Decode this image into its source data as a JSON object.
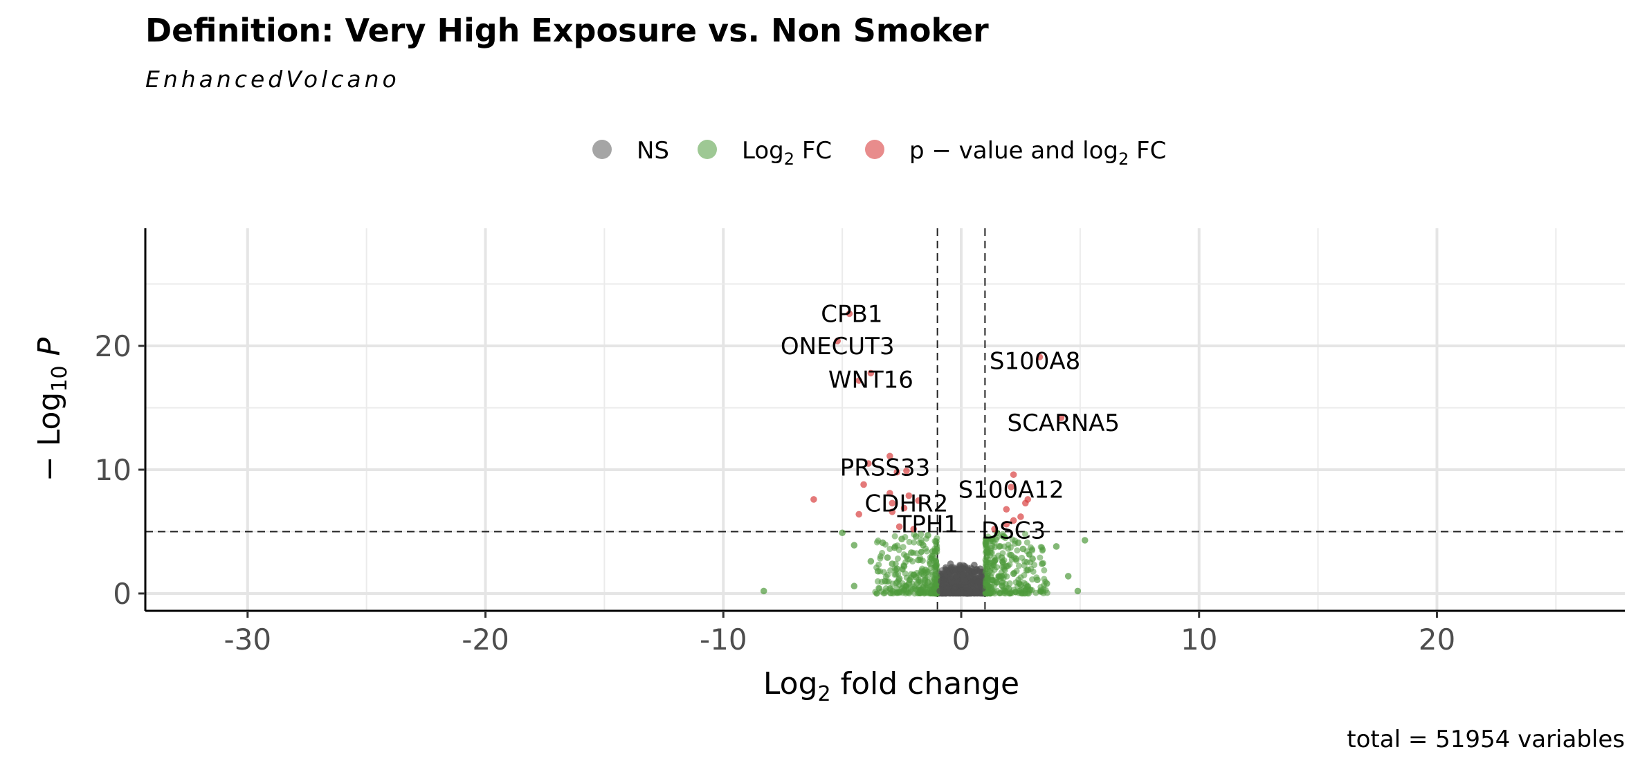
{
  "chart_data": {
    "type": "scatter",
    "title": "Definition: Very High Exposure vs. Non Smoker",
    "subtitle": "EnhancedVolcano",
    "xlabel": "Log2 fold change",
    "ylabel": "−Log10 P",
    "caption": "total = 51954 variables",
    "xlim": [
      -34.3,
      27.9
    ],
    "ylim": [
      -1.4,
      29.5
    ],
    "x_ticks": [
      -30,
      -20,
      -10,
      0,
      10,
      20
    ],
    "y_ticks": [
      0,
      10,
      20
    ],
    "x_tick_labels": [
      "-30",
      "-20",
      "-10",
      "0",
      "10",
      "20"
    ],
    "y_tick_labels": [
      "0",
      "10",
      "20"
    ],
    "grid": true,
    "legend_position": "top",
    "fc_cutoff": 1,
    "p_cutoff_neglog10": 5,
    "legend": [
      {
        "key": "NS",
        "label": "NS",
        "color": "#7f7f7f"
      },
      {
        "key": "FC",
        "label": "Log2 FC",
        "color": "#4e9a3c"
      },
      {
        "key": "P_FC",
        "label": "p − value and log2 FC",
        "color": "#d94040"
      }
    ],
    "series": [
      {
        "name": "NS",
        "color": "#505050",
        "points": [
          [
            -0.9,
            0.2
          ],
          [
            -0.8,
            0.6
          ],
          [
            -0.7,
            1.2
          ],
          [
            -0.6,
            0.4
          ],
          [
            -0.5,
            1.8
          ],
          [
            -0.4,
            0.9
          ],
          [
            -0.3,
            0.3
          ],
          [
            -0.2,
            1.4
          ],
          [
            -0.1,
            0.7
          ],
          [
            0.0,
            0.2
          ],
          [
            0.1,
            1.1
          ],
          [
            0.2,
            0.5
          ],
          [
            0.3,
            1.6
          ],
          [
            0.4,
            0.8
          ],
          [
            0.5,
            0.3
          ],
          [
            0.6,
            1.3
          ],
          [
            0.7,
            0.6
          ],
          [
            0.8,
            2.0
          ],
          [
            0.9,
            0.4
          ],
          [
            -0.85,
            1.0
          ],
          [
            -0.65,
            2.1
          ],
          [
            -0.35,
            1.9
          ],
          [
            -0.15,
            0.1
          ],
          [
            0.15,
            2.2
          ],
          [
            0.45,
            1.7
          ],
          [
            0.75,
            1.0
          ],
          [
            0.55,
            2.3
          ],
          [
            -0.55,
            0.1
          ],
          [
            0.25,
            0.0
          ],
          [
            -0.25,
            0.5
          ],
          [
            0.05,
            1.5
          ],
          [
            -0.75,
            0.8
          ],
          [
            0.85,
            1.4
          ],
          [
            0.35,
            0.2
          ],
          [
            -0.45,
            2.4
          ],
          [
            0.65,
            0.1
          ]
        ]
      },
      {
        "name": "Log2 FC",
        "color": "#4e9a3c",
        "points": [
          [
            -8.3,
            0.2
          ],
          [
            -5.0,
            4.9
          ],
          [
            -4.5,
            3.9
          ],
          [
            -4.5,
            0.6
          ],
          [
            -3.8,
            2.6
          ],
          [
            -3.5,
            1.8
          ],
          [
            -3.3,
            4.1
          ],
          [
            -3.1,
            2.9
          ],
          [
            -3.0,
            0.4
          ],
          [
            -2.8,
            3.7
          ],
          [
            -2.6,
            1.2
          ],
          [
            -2.5,
            4.4
          ],
          [
            -2.4,
            2.2
          ],
          [
            -2.2,
            0.8
          ],
          [
            -2.1,
            3.3
          ],
          [
            -2.0,
            1.5
          ],
          [
            -1.9,
            4.6
          ],
          [
            -1.8,
            2.7
          ],
          [
            -1.7,
            0.3
          ],
          [
            -1.6,
            3.9
          ],
          [
            -1.5,
            1.9
          ],
          [
            -1.4,
            0.9
          ],
          [
            -1.3,
            2.4
          ],
          [
            -1.2,
            3.4
          ],
          [
            -1.1,
            1.1
          ],
          [
            -1.05,
            4.2
          ],
          [
            -1.6,
            0.5
          ],
          [
            -2.7,
            2.0
          ],
          [
            -3.2,
            1.0
          ],
          [
            -2.3,
            3.0
          ],
          [
            -1.4,
            4.7
          ],
          [
            -1.9,
            1.3
          ],
          [
            -2.9,
            2.4
          ],
          [
            1.05,
            0.6
          ],
          [
            1.1,
            3.3
          ],
          [
            1.2,
            1.8
          ],
          [
            1.3,
            4.4
          ],
          [
            1.4,
            2.6
          ],
          [
            1.5,
            0.9
          ],
          [
            1.6,
            3.8
          ],
          [
            1.7,
            1.4
          ],
          [
            1.8,
            4.6
          ],
          [
            1.9,
            2.2
          ],
          [
            2.0,
            0.4
          ],
          [
            2.1,
            3.1
          ],
          [
            2.2,
            1.6
          ],
          [
            2.3,
            2.8
          ],
          [
            2.5,
            0.7
          ],
          [
            2.6,
            3.6
          ],
          [
            2.8,
            1.9
          ],
          [
            3.0,
            2.8
          ],
          [
            3.2,
            1.1
          ],
          [
            3.4,
            2.4
          ],
          [
            3.6,
            0.8
          ],
          [
            4.0,
            3.8
          ],
          [
            4.5,
            1.4
          ],
          [
            4.9,
            0.2
          ],
          [
            5.2,
            4.3
          ],
          [
            1.3,
            1.1
          ],
          [
            1.7,
            2.9
          ],
          [
            2.4,
            4.1
          ],
          [
            1.1,
            2.0
          ],
          [
            2.9,
            0.3
          ],
          [
            1.5,
            4.9
          ]
        ]
      },
      {
        "name": "p − value and log2 FC",
        "color": "#d94040",
        "points": [
          [
            -4.7,
            22.6
          ],
          [
            -5.2,
            20.4
          ],
          [
            -3.8,
            17.8
          ],
          [
            -4.3,
            17.2
          ],
          [
            3.3,
            19.1
          ],
          [
            4.2,
            14.2
          ],
          [
            -3.0,
            11.1
          ],
          [
            -3.9,
            10.5
          ],
          [
            -2.7,
            9.8
          ],
          [
            -2.3,
            9.9
          ],
          [
            -4.1,
            8.8
          ],
          [
            -3.0,
            8.1
          ],
          [
            -2.2,
            7.9
          ],
          [
            -6.2,
            7.6
          ],
          [
            -2.9,
            7.3
          ],
          [
            -2.4,
            6.9
          ],
          [
            -2.9,
            6.6
          ],
          [
            -1.8,
            7.5
          ],
          [
            -4.3,
            6.4
          ],
          [
            -2.6,
            5.4
          ],
          [
            -2.0,
            5.2
          ],
          [
            2.2,
            9.6
          ],
          [
            2.1,
            8.6
          ],
          [
            2.8,
            7.6
          ],
          [
            2.7,
            7.3
          ],
          [
            1.9,
            6.8
          ],
          [
            2.5,
            6.2
          ],
          [
            2.2,
            5.9
          ],
          [
            1.9,
            5.6
          ],
          [
            1.4,
            5.2
          ]
        ]
      }
    ],
    "labels": [
      {
        "gene": "CPB1",
        "x": -4.6,
        "y": 22.6
      },
      {
        "gene": "ONECUT3",
        "x": -5.2,
        "y": 20.0
      },
      {
        "gene": "WNT16",
        "x": -3.8,
        "y": 17.3
      },
      {
        "gene": "S100A8",
        "x": 3.1,
        "y": 18.8
      },
      {
        "gene": "SCARNA5",
        "x": 4.3,
        "y": 13.8
      },
      {
        "gene": "PRSS33",
        "x": -3.2,
        "y": 10.2
      },
      {
        "gene": "S100A12",
        "x": 2.1,
        "y": 8.4
      },
      {
        "gene": "CDHR2",
        "x": -2.3,
        "y": 7.3
      },
      {
        "gene": "TPH1",
        "x": -1.4,
        "y": 5.6
      },
      {
        "gene": "DSC3",
        "x": 2.2,
        "y": 5.1
      }
    ]
  }
}
